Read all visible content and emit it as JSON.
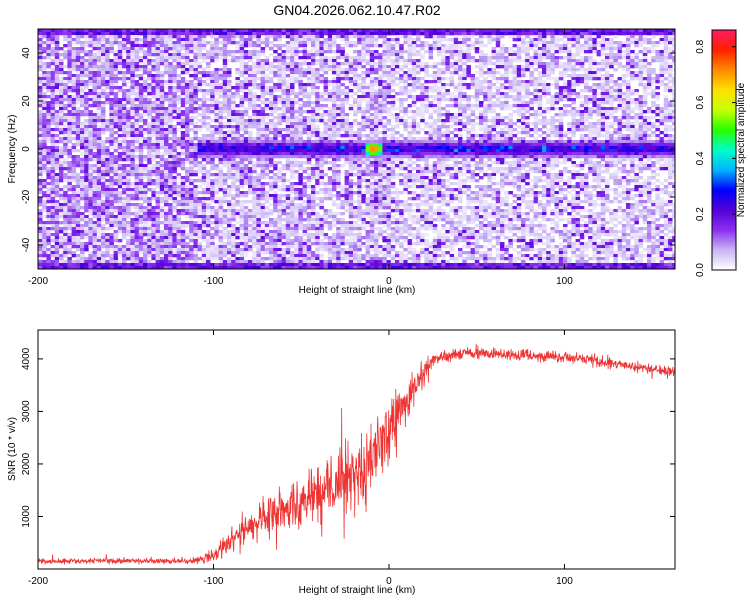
{
  "figure": {
    "title": "GN04.2026.062.10.47.R02"
  },
  "chart_data": [
    {
      "type": "heatmap",
      "xlabel": "Height of straight line (km)",
      "ylabel": "Frequency (Hz)",
      "xlim": [
        -200,
        163
      ],
      "ylim": [
        -50,
        50
      ],
      "x_ticks": [
        -200,
        -100,
        0,
        100
      ],
      "y_ticks": [
        -40,
        -20,
        0,
        20,
        40
      ],
      "colorbar": {
        "label": "Normalized spectral amplitude",
        "range": [
          0.0,
          0.86
        ],
        "ticks": [
          0.0,
          0.2,
          0.4,
          0.6,
          0.8
        ],
        "colors": [
          "#ffffff",
          "#c9b6f5",
          "#8b30f0",
          "#5200d8",
          "#0000ff",
          "#00b4ff",
          "#00ffc8",
          "#28ff00",
          "#c8ff00",
          "#ffe000",
          "#ff8a00",
          "#ff2000",
          "#ff1c64"
        ]
      },
      "features": {
        "signal_band_frequency_hz": 0,
        "signal_band_start_km": -110,
        "peak": {
          "x_km": -9,
          "freq_hz": 0,
          "amplitude": 0.85
        },
        "edge_bands_hz": [
          -49,
          49
        ]
      },
      "grid": false
    },
    {
      "type": "line",
      "xlabel": "Height of straight line (km)",
      "ylabel": "SNR (10 * v/v)",
      "xlim": [
        -200,
        163
      ],
      "ylim": [
        0,
        4550
      ],
      "x_ticks": [
        -200,
        -100,
        0,
        100
      ],
      "y_ticks": [
        1000,
        2000,
        3000,
        4000
      ],
      "color": "#ee3333",
      "grid": false,
      "series": [
        {
          "x": [
            -200,
            -180,
            -160,
            -140,
            -120,
            -110,
            -100,
            -90,
            -80,
            -70,
            -60,
            -50,
            -40,
            -30,
            -20,
            -15,
            -10,
            -5,
            0,
            5,
            10,
            15,
            20,
            25,
            30,
            40,
            50,
            60,
            70,
            80,
            90,
            100,
            110,
            120,
            130,
            140,
            150,
            163
          ],
          "y": [
            150,
            150,
            160,
            150,
            150,
            150,
            260,
            550,
            800,
            1000,
            1100,
            1250,
            1450,
            1600,
            1750,
            1900,
            2100,
            2300,
            2600,
            2900,
            3200,
            3500,
            3750,
            3950,
            4050,
            4100,
            4110,
            4100,
            4080,
            4060,
            4050,
            4030,
            4000,
            3960,
            3900,
            3850,
            3800,
            3750
          ],
          "noise": [
            80,
            80,
            80,
            80,
            80,
            100,
            220,
            380,
            480,
            540,
            600,
            700,
            800,
            900,
            1000,
            1050,
            1100,
            1200,
            1100,
            900,
            700,
            500,
            360,
            280,
            200,
            180,
            180,
            180,
            180,
            180,
            170,
            170,
            170,
            160,
            160,
            150,
            150,
            150
          ]
        }
      ]
    }
  ]
}
